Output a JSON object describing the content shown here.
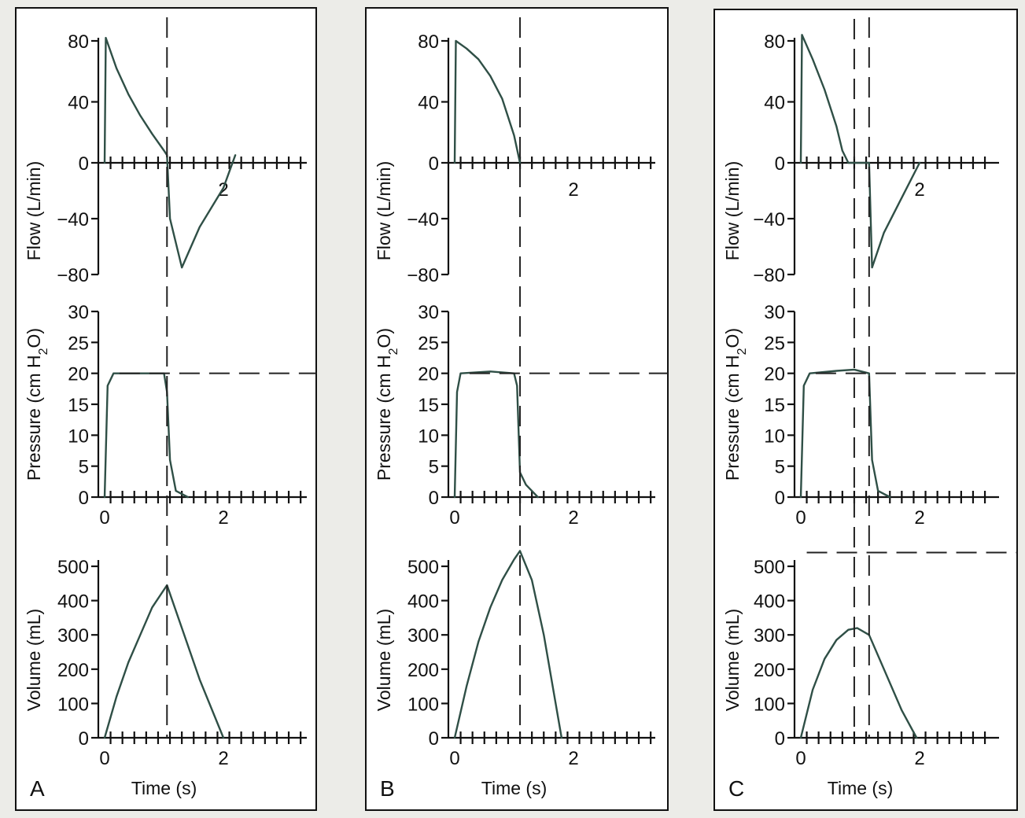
{
  "panels": [
    {
      "label": "A",
      "xlabel": "Time (s)"
    },
    {
      "label": "B",
      "xlabel": "Time (s)"
    },
    {
      "label": "C",
      "xlabel": "Time (s)"
    }
  ],
  "axes": {
    "flow": {
      "label": "Flow (L/min)",
      "ticks": [
        "80",
        "40",
        "0",
        "−40",
        "−80"
      ]
    },
    "pressure": {
      "label_pre": "Pressure (cm H",
      "label_sub": "2",
      "label_post": "O)",
      "ticks": [
        "30",
        "25",
        "20",
        "15",
        "10",
        "5",
        "0"
      ]
    },
    "volume": {
      "label": "Volume (mL)",
      "ticks": [
        "500",
        "400",
        "300",
        "200",
        "100",
        "0"
      ]
    },
    "x_ticks": [
      "0",
      "2"
    ]
  },
  "chart_data": [
    {
      "panel": "A",
      "type": "line",
      "xlabel": "Time (s)",
      "xlim": [
        0,
        3.4
      ],
      "reference_lines": {
        "end_of_inspiration_time_s": 1.05,
        "set_pressure_cmH2O": 20
      },
      "subplots": [
        {
          "ylabel": "Flow (L/min)",
          "ylim": [
            -80,
            80
          ],
          "x": [
            0,
            0.02,
            0.2,
            0.4,
            0.6,
            0.8,
            1.0,
            1.05,
            1.1,
            1.3,
            1.6,
            2.0,
            2.2
          ],
          "y": [
            0,
            82,
            62,
            45,
            31,
            19,
            8,
            5,
            -40,
            -75,
            -46,
            -18,
            5
          ]
        },
        {
          "ylabel": "Pressure (cm H2O)",
          "ylim": [
            0,
            30
          ],
          "x": [
            0,
            0.05,
            0.15,
            0.9,
            1.0,
            1.05,
            1.1,
            1.2,
            1.4
          ],
          "y": [
            0,
            18,
            20,
            20,
            20,
            17,
            6,
            1,
            0
          ]
        },
        {
          "ylabel": "Volume (mL)",
          "ylim": [
            0,
            500
          ],
          "x": [
            0,
            0.2,
            0.4,
            0.6,
            0.8,
            1.05,
            1.3,
            1.6,
            2.0
          ],
          "y": [
            0,
            120,
            220,
            300,
            380,
            445,
            320,
            170,
            0
          ]
        }
      ]
    },
    {
      "panel": "B",
      "type": "line",
      "xlabel": "Time (s)",
      "xlim": [
        0,
        3.4
      ],
      "reference_lines": {
        "end_of_inspiration_time_s": 1.1,
        "set_pressure_cmH2O": 20
      },
      "subplots": [
        {
          "ylabel": "Flow (L/min)",
          "ylim": [
            -80,
            80
          ],
          "x": [
            0,
            0.02,
            0.2,
            0.4,
            0.6,
            0.8,
            1.0,
            1.1
          ],
          "y": [
            0,
            80,
            75,
            68,
            57,
            42,
            18,
            0
          ]
        },
        {
          "ylabel": "Pressure (cm H2O)",
          "ylim": [
            0,
            30
          ],
          "x": [
            0,
            0.04,
            0.1,
            0.6,
            1.0,
            1.05,
            1.1,
            1.2,
            1.3,
            1.4
          ],
          "y": [
            0,
            17,
            20,
            20.3,
            20,
            18,
            4,
            2,
            1,
            0
          ]
        },
        {
          "ylabel": "Volume (mL)",
          "ylim": [
            0,
            500
          ],
          "x": [
            0,
            0.2,
            0.4,
            0.6,
            0.8,
            1.0,
            1.1,
            1.3,
            1.5,
            1.8
          ],
          "y": [
            0,
            150,
            280,
            380,
            460,
            520,
            545,
            460,
            300,
            0
          ]
        }
      ]
    },
    {
      "panel": "C",
      "type": "line",
      "xlabel": "Time (s)",
      "xlim": [
        0,
        3.4
      ],
      "reference_lines": {
        "end_of_inspiration_time_s": 0.9,
        "end_of_hold_time_s": 1.15,
        "set_pressure_cmH2O": 20,
        "upper_dashed_line": 540
      },
      "subplots": [
        {
          "ylabel": "Flow (L/min)",
          "ylim": [
            -80,
            80
          ],
          "x": [
            0,
            0.02,
            0.2,
            0.4,
            0.6,
            0.7,
            0.8,
            1.15,
            1.2,
            1.4,
            1.7,
            2.0
          ],
          "y": [
            0,
            84,
            68,
            48,
            24,
            8,
            0,
            0,
            -75,
            -50,
            -25,
            0
          ]
        },
        {
          "ylabel": "Pressure (cm H2O)",
          "ylim": [
            0,
            30
          ],
          "x": [
            0,
            0.05,
            0.15,
            0.6,
            0.9,
            1.15,
            1.2,
            1.3,
            1.5
          ],
          "y": [
            0,
            18,
            20,
            20.4,
            20.6,
            20,
            6,
            1,
            0
          ]
        },
        {
          "ylabel": "Volume (mL)",
          "ylim": [
            0,
            500
          ],
          "x": [
            0,
            0.2,
            0.4,
            0.6,
            0.8,
            0.95,
            1.15,
            1.4,
            1.7,
            1.95
          ],
          "y": [
            0,
            140,
            230,
            285,
            315,
            320,
            300,
            200,
            80,
            0
          ]
        }
      ]
    }
  ]
}
